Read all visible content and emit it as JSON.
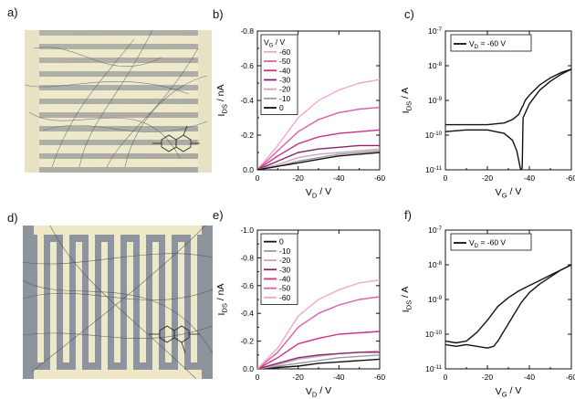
{
  "panel_labels": [
    "a)",
    "b)",
    "c)",
    "d)",
    "e)",
    "f)"
  ],
  "chart_data": [
    {
      "id": "b",
      "type": "line",
      "xlabel": "V_D / V",
      "ylabel": "I_DS / nA",
      "x_ticks": [
        "0",
        "-20",
        "-40",
        "-60"
      ],
      "y_ticks": [
        "0.0",
        "-0.2",
        "-0.4",
        "-0.6",
        "-0.8"
      ],
      "xlim": [
        0,
        -60
      ],
      "ylim": [
        0,
        -0.8
      ],
      "legend_title": "V_G / V",
      "legend_position": "top-left",
      "series": [
        {
          "name": "-60",
          "color": "#f2a6cf",
          "x": [
            0,
            -10,
            -20,
            -30,
            -40,
            -50,
            -60
          ],
          "y": [
            0,
            -0.14,
            -0.3,
            -0.4,
            -0.46,
            -0.5,
            -0.52
          ]
        },
        {
          "name": "-50",
          "color": "#dc5ea6",
          "x": [
            0,
            -10,
            -20,
            -30,
            -40,
            -50,
            -60
          ],
          "y": [
            0,
            -0.11,
            -0.22,
            -0.29,
            -0.33,
            -0.35,
            -0.36
          ]
        },
        {
          "name": "-40",
          "color": "#cc2f86",
          "x": [
            0,
            -10,
            -20,
            -30,
            -40,
            -50,
            -60
          ],
          "y": [
            0,
            -0.08,
            -0.15,
            -0.19,
            -0.21,
            -0.22,
            -0.23
          ]
        },
        {
          "name": "-30",
          "color": "#8c2560",
          "x": [
            0,
            -10,
            -20,
            -30,
            -40,
            -50,
            -60
          ],
          "y": [
            0,
            -0.05,
            -0.1,
            -0.12,
            -0.13,
            -0.14,
            -0.14
          ]
        },
        {
          "name": "-20",
          "color": "#c9a6c4",
          "x": [
            0,
            -10,
            -20,
            -30,
            -40,
            -50,
            -60
          ],
          "y": [
            0,
            -0.03,
            -0.07,
            -0.09,
            -0.1,
            -0.11,
            -0.12
          ]
        },
        {
          "name": "-10",
          "color": "#9a9a9a",
          "x": [
            0,
            -10,
            -20,
            -30,
            -40,
            -50,
            -60
          ],
          "y": [
            0,
            -0.02,
            -0.05,
            -0.07,
            -0.09,
            -0.1,
            -0.11
          ]
        },
        {
          "name": "0",
          "color": "#111111",
          "x": [
            0,
            -10,
            -20,
            -30,
            -40,
            -50,
            -60
          ],
          "y": [
            0,
            -0.02,
            -0.04,
            -0.06,
            -0.08,
            -0.09,
            -0.1
          ]
        }
      ]
    },
    {
      "id": "c",
      "type": "line",
      "scale": "log",
      "xlabel": "V_G / V",
      "ylabel": "I_DS / A",
      "x_ticks": [
        "0",
        "-20",
        "-40",
        "-60"
      ],
      "y_ticks": [
        "10^-11",
        "10^-10",
        "10^-9",
        "10^-8",
        "10^-7"
      ],
      "xlim": [
        0,
        -60
      ],
      "ylim_exponent": [
        -11,
        -7
      ],
      "legend_position": "top-left",
      "series": [
        {
          "name": "V_D = -60 V",
          "color": "#111111",
          "x": [
            0,
            -10,
            -20,
            -28,
            -32,
            -35,
            -36.5,
            -37,
            -38,
            -40,
            -45,
            -50,
            -55,
            -60
          ],
          "y": [
            -9.7,
            -9.7,
            -9.7,
            -9.65,
            -9.55,
            -9.4,
            -9.2,
            -9.15,
            -9.0,
            -8.85,
            -8.55,
            -8.35,
            -8.2,
            -8.1
          ]
        },
        {
          "name": "",
          "color": "#111111",
          "x": [
            0,
            -10,
            -20,
            -28,
            -32,
            -34,
            -35.5,
            -36.2,
            -36.6,
            -37,
            -40,
            -45,
            -50,
            -55,
            -60
          ],
          "y": [
            -9.9,
            -9.85,
            -9.85,
            -9.95,
            -10.15,
            -10.45,
            -10.9,
            -11.1,
            -10.9,
            -9.5,
            -9.1,
            -8.7,
            -8.45,
            -8.25,
            -8.1
          ]
        }
      ]
    },
    {
      "id": "e",
      "type": "line",
      "xlabel": "V_D / V",
      "ylabel": "I_DS / nA",
      "x_ticks": [
        "0",
        "-20",
        "-40",
        "-60"
      ],
      "y_ticks": [
        "0.0",
        "-0.2",
        "-0.4",
        "-0.6",
        "-0.8",
        "-1.0"
      ],
      "xlim": [
        0,
        -60
      ],
      "ylim": [
        0,
        -1.0
      ],
      "legend_position": "top-left",
      "series": [
        {
          "name": "0",
          "color": "#111111",
          "x": [
            0,
            -10,
            -20,
            -30,
            -40,
            -50,
            -60
          ],
          "y": [
            0,
            -0.01,
            -0.02,
            -0.04,
            -0.05,
            -0.06,
            -0.07
          ]
        },
        {
          "name": "-10",
          "color": "#9a9a9a",
          "x": [
            0,
            -10,
            -20,
            -30,
            -40,
            -50,
            -60
          ],
          "y": [
            0,
            -0.02,
            -0.04,
            -0.06,
            -0.08,
            -0.09,
            -0.1
          ]
        },
        {
          "name": "-20",
          "color": "#c9a6c4",
          "x": [
            0,
            -10,
            -20,
            -30,
            -40,
            -50,
            -60
          ],
          "y": [
            0,
            -0.03,
            -0.07,
            -0.09,
            -0.11,
            -0.12,
            -0.13
          ]
        },
        {
          "name": "-30",
          "color": "#8c2560",
          "x": [
            0,
            -10,
            -20,
            -30,
            -40,
            -50,
            -60
          ],
          "y": [
            0,
            -0.04,
            -0.08,
            -0.1,
            -0.11,
            -0.12,
            -0.12
          ]
        },
        {
          "name": "-40",
          "color": "#cc2f86",
          "x": [
            0,
            -10,
            -20,
            -30,
            -40,
            -50,
            -60
          ],
          "y": [
            0,
            -0.08,
            -0.18,
            -0.22,
            -0.25,
            -0.26,
            -0.27
          ]
        },
        {
          "name": "-50",
          "color": "#dc5ea6",
          "x": [
            0,
            -10,
            -20,
            -30,
            -40,
            -50,
            -60
          ],
          "y": [
            0,
            -0.12,
            -0.3,
            -0.4,
            -0.46,
            -0.5,
            -0.52
          ]
        },
        {
          "name": "-60",
          "color": "#f2a6cf",
          "x": [
            0,
            -10,
            -20,
            -30,
            -40,
            -50,
            -60
          ],
          "y": [
            0,
            -0.15,
            -0.38,
            -0.5,
            -0.57,
            -0.62,
            -0.64
          ]
        }
      ]
    },
    {
      "id": "f",
      "type": "line",
      "scale": "log",
      "xlabel": "V_G / V",
      "ylabel": "I_DS / A",
      "x_ticks": [
        "0",
        "-20",
        "-40",
        "-60"
      ],
      "y_ticks": [
        "10^-11",
        "10^-10",
        "10^-9",
        "10^-8",
        "10^-7"
      ],
      "xlim": [
        0,
        -60
      ],
      "ylim_exponent": [
        -11,
        -7
      ],
      "legend_position": "top-left",
      "series": [
        {
          "name": "V_D = -60 V",
          "color": "#111111",
          "x": [
            0,
            -5,
            -10,
            -15,
            -20,
            -25,
            -30,
            -35,
            -40,
            -45,
            -50,
            -55,
            -60
          ],
          "y": [
            -10.2,
            -10.25,
            -10.2,
            -9.95,
            -9.6,
            -9.2,
            -8.95,
            -8.75,
            -8.6,
            -8.45,
            -8.3,
            -8.15,
            -8.0
          ]
        },
        {
          "name": "",
          "color": "#111111",
          "x": [
            0,
            -5,
            -10,
            -15,
            -20,
            -23,
            -25,
            -28,
            -32,
            -36,
            -40,
            -45,
            -50,
            -55,
            -60
          ],
          "y": [
            -10.3,
            -10.35,
            -10.3,
            -10.35,
            -10.4,
            -10.35,
            -10.2,
            -9.9,
            -9.5,
            -9.1,
            -8.8,
            -8.55,
            -8.35,
            -8.15,
            -8.0
          ]
        }
      ]
    }
  ]
}
